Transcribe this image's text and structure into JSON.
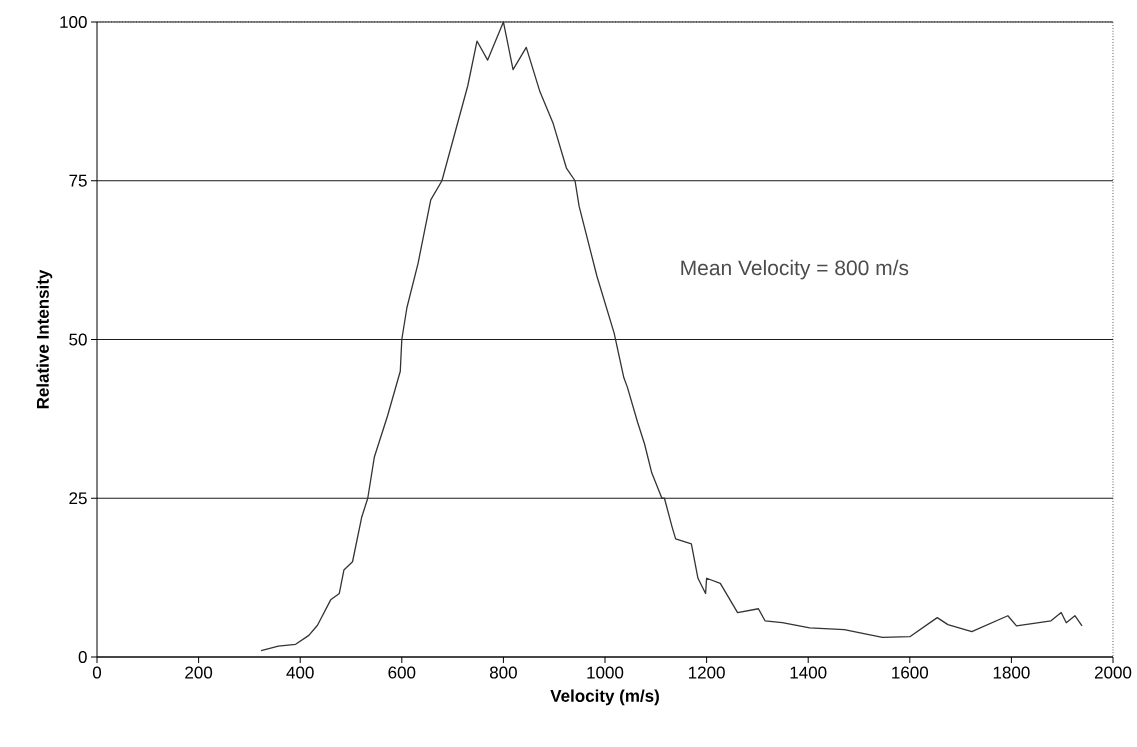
{
  "chart_data": {
    "type": "line",
    "xlabel": "Velocity (m/s)",
    "ylabel": "Relative Intensity",
    "xlim": [
      0,
      2000
    ],
    "ylim": [
      0,
      100
    ],
    "xticks": [
      0,
      200,
      400,
      600,
      800,
      1000,
      1200,
      1400,
      1600,
      1800,
      2000
    ],
    "yticks": [
      0,
      25,
      50,
      75,
      100
    ],
    "grid": "y",
    "marker": "none",
    "line_style": "solid",
    "annotations": [
      "Mean Velocity = 800 m/s"
    ],
    "series": [
      {
        "color": "#333333",
        "x": [
          323,
          357,
          391,
          417,
          434,
          460,
          477,
          486,
          503,
          521,
          533,
          546,
          572,
          597,
          600,
          610,
          632,
          657,
          679,
          730,
          748,
          769,
          800,
          819,
          845,
          872,
          898,
          924,
          941,
          949,
          984,
          1018,
          1037,
          1044,
          1064,
          1078,
          1092,
          1112,
          1117,
          1132,
          1139,
          1170,
          1183,
          1198,
          1200,
          1227,
          1261,
          1302,
          1315,
          1349,
          1403,
          1471,
          1546,
          1600,
          1654,
          1675,
          1722,
          1793,
          1810,
          1878,
          1898,
          1908,
          1925,
          1939
        ],
        "values": [
          1,
          1.7,
          2,
          3.4,
          5,
          9,
          10,
          13.7,
          15,
          22,
          25,
          31.5,
          38,
          45,
          50,
          55,
          62,
          72,
          75,
          90,
          97,
          94,
          100,
          92.5,
          96,
          89,
          84,
          77,
          75,
          71,
          60,
          51,
          44,
          42.5,
          37,
          33.5,
          29,
          25,
          25,
          20.5,
          18.6,
          17.8,
          12.4,
          10,
          12.4,
          11.6,
          7,
          7.6,
          5.7,
          5.4,
          4.6,
          4.3,
          3.1,
          3.2,
          6.2,
          5.1,
          4,
          6.5,
          4.9,
          5.7,
          7,
          5.4,
          6.5,
          4.9
        ]
      }
    ]
  }
}
